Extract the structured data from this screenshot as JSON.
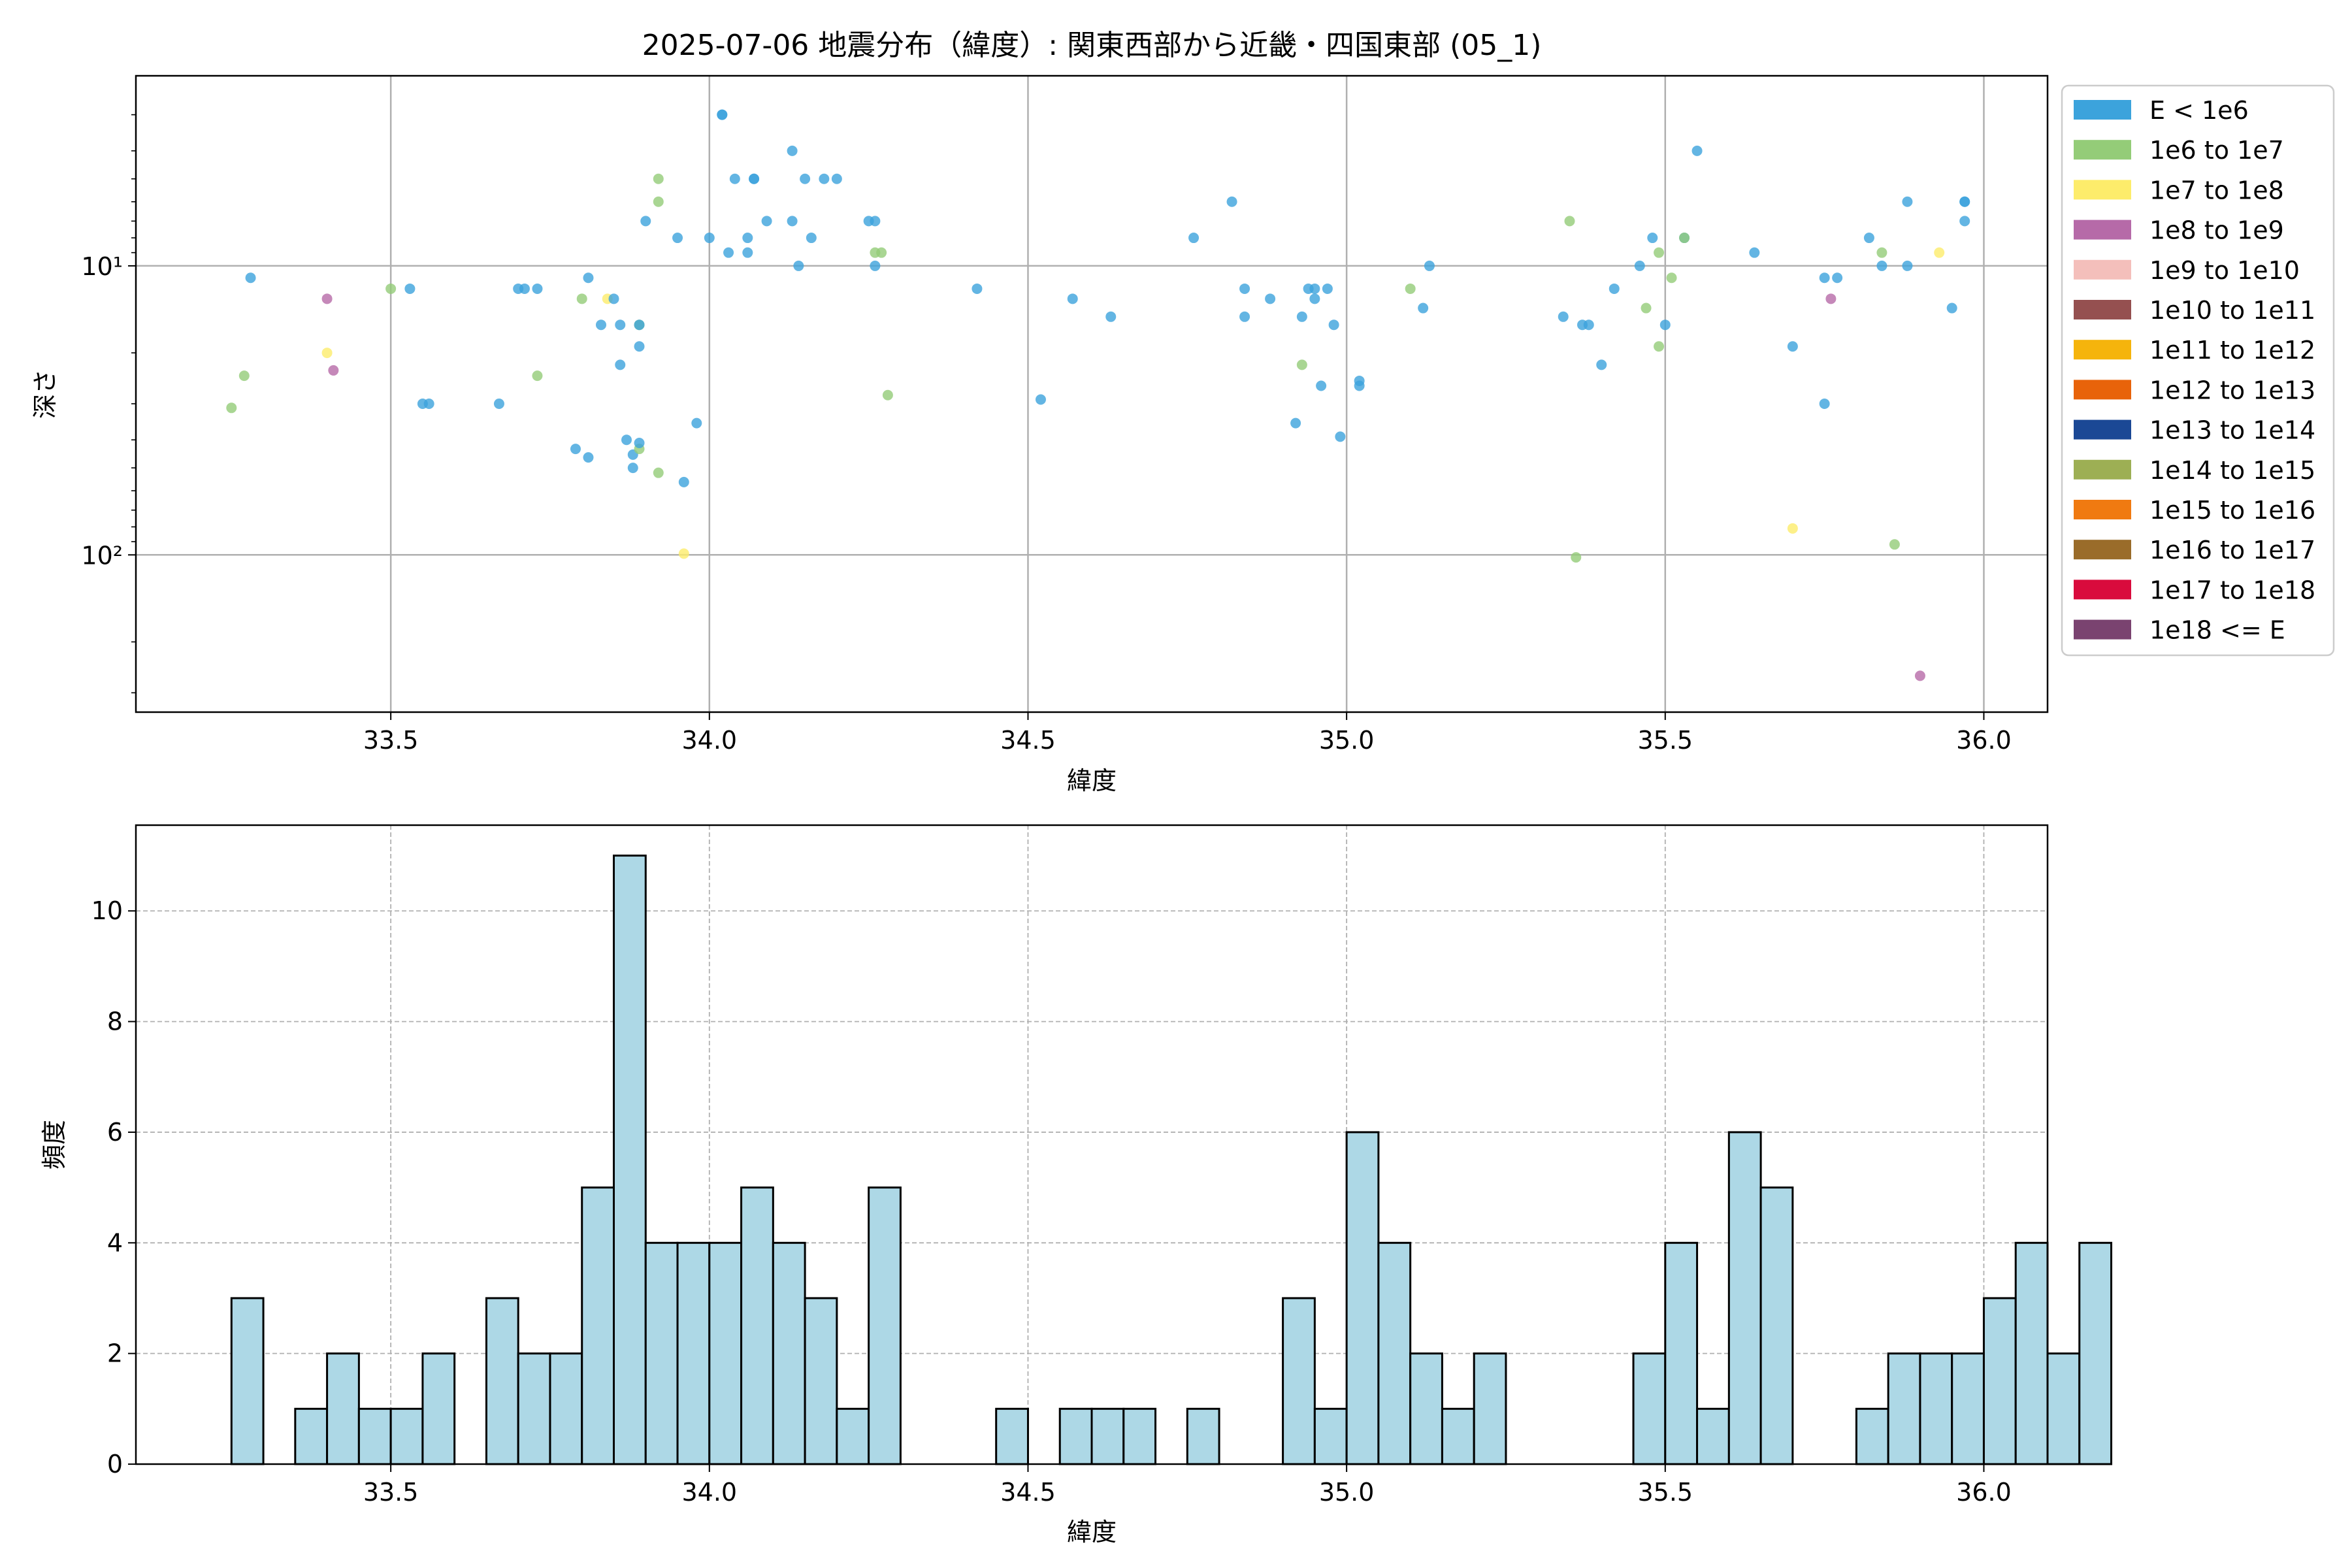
{
  "chart_data": [
    {
      "type": "scatter",
      "title": "2025-07-06 地震分布（緯度）: 関東西部から近畿・四国東部 (05_1)",
      "xlabel": "緯度",
      "ylabel": "深さ",
      "xlim": [
        33.1,
        36.1
      ],
      "ylim": [
        350,
        2.2
      ],
      "y_scale": "log",
      "y_inverted": true,
      "grid": true,
      "x_ticks": [
        33.5,
        34.0,
        34.5,
        35.0,
        35.5,
        36.0
      ],
      "x_tick_labels": [
        "33.5",
        "34.0",
        "34.5",
        "35.0",
        "35.5",
        "36.0"
      ],
      "y_ticks": [
        10,
        100
      ],
      "y_tick_labels": [
        "10¹",
        "10²"
      ],
      "legend_position": "outside-right",
      "legend": [
        {
          "label": "E < 1e6",
          "color": "#3ca3dc"
        },
        {
          "label": "1e6 to 1e7",
          "color": "#94cc78"
        },
        {
          "label": "1e7 to 1e8",
          "color": "#fdec6b"
        },
        {
          "label": "1e8 to 1e9",
          "color": "#b66aa8"
        },
        {
          "label": "1e9 to 1e10",
          "color": "#f4bfbb"
        },
        {
          "label": "1e10 to 1e11",
          "color": "#955050"
        },
        {
          "label": "1e11 to 1e12",
          "color": "#f5b40c"
        },
        {
          "label": "1e12 to 1e13",
          "color": "#e8630a"
        },
        {
          "label": "1e13 to 1e14",
          "color": "#1b4895"
        },
        {
          "label": "1e14 to 1e15",
          "color": "#9daf54"
        },
        {
          "label": "1e15 to 1e16",
          "color": "#f07a11"
        },
        {
          "label": "1e16 to 1e17",
          "color": "#9a6c2a"
        },
        {
          "label": "1e17 to 1e18",
          "color": "#d90b3d"
        },
        {
          "label": "1e18 <= E",
          "color": "#7a4370"
        }
      ],
      "points": [
        {
          "x": 33.25,
          "y": 31,
          "c": 1
        },
        {
          "x": 33.27,
          "y": 24,
          "c": 1
        },
        {
          "x": 33.28,
          "y": 11,
          "c": 0
        },
        {
          "x": 33.4,
          "y": 13,
          "c": 3
        },
        {
          "x": 33.4,
          "y": 20,
          "c": 2
        },
        {
          "x": 33.41,
          "y": 23,
          "c": 3
        },
        {
          "x": 33.5,
          "y": 12,
          "c": 1
        },
        {
          "x": 33.53,
          "y": 12,
          "c": 0
        },
        {
          "x": 33.55,
          "y": 30,
          "c": 0
        },
        {
          "x": 33.56,
          "y": 30,
          "c": 0
        },
        {
          "x": 33.67,
          "y": 30,
          "c": 0
        },
        {
          "x": 33.7,
          "y": 12,
          "c": 0
        },
        {
          "x": 33.71,
          "y": 12,
          "c": 0
        },
        {
          "x": 33.73,
          "y": 12,
          "c": 0
        },
        {
          "x": 33.73,
          "y": 24,
          "c": 1
        },
        {
          "x": 33.79,
          "y": 43,
          "c": 0
        },
        {
          "x": 33.8,
          "y": 13,
          "c": 1
        },
        {
          "x": 33.81,
          "y": 46,
          "c": 0
        },
        {
          "x": 33.81,
          "y": 11,
          "c": 0
        },
        {
          "x": 33.83,
          "y": 16,
          "c": 0
        },
        {
          "x": 33.84,
          "y": 13,
          "c": 2
        },
        {
          "x": 33.85,
          "y": 13,
          "c": 0
        },
        {
          "x": 33.86,
          "y": 16,
          "c": 0
        },
        {
          "x": 33.86,
          "y": 22,
          "c": 0
        },
        {
          "x": 33.87,
          "y": 40,
          "c": 0
        },
        {
          "x": 33.88,
          "y": 50,
          "c": 0
        },
        {
          "x": 33.88,
          "y": 45,
          "c": 0
        },
        {
          "x": 33.89,
          "y": 43,
          "c": 1
        },
        {
          "x": 33.89,
          "y": 41,
          "c": 0
        },
        {
          "x": 33.89,
          "y": 16,
          "c": 1
        },
        {
          "x": 33.89,
          "y": 16,
          "c": 0
        },
        {
          "x": 33.89,
          "y": 19,
          "c": 0
        },
        {
          "x": 33.9,
          "y": 7,
          "c": 0
        },
        {
          "x": 33.92,
          "y": 5,
          "c": 1
        },
        {
          "x": 33.92,
          "y": 6,
          "c": 1
        },
        {
          "x": 33.92,
          "y": 52,
          "c": 1
        },
        {
          "x": 33.95,
          "y": 8,
          "c": 0
        },
        {
          "x": 33.96,
          "y": 56,
          "c": 0
        },
        {
          "x": 33.96,
          "y": 99,
          "c": 2
        },
        {
          "x": 33.98,
          "y": 35,
          "c": 0
        },
        {
          "x": 34.0,
          "y": 8,
          "c": 0
        },
        {
          "x": 34.02,
          "y": 3,
          "c": 0
        },
        {
          "x": 34.02,
          "y": 3,
          "c": 0
        },
        {
          "x": 34.03,
          "y": 9,
          "c": 0
        },
        {
          "x": 34.04,
          "y": 5,
          "c": 0
        },
        {
          "x": 34.06,
          "y": 9,
          "c": 0
        },
        {
          "x": 34.06,
          "y": 8,
          "c": 0
        },
        {
          "x": 34.07,
          "y": 5,
          "c": 0
        },
        {
          "x": 34.07,
          "y": 5,
          "c": 0
        },
        {
          "x": 34.09,
          "y": 7,
          "c": 0
        },
        {
          "x": 34.13,
          "y": 4,
          "c": 0
        },
        {
          "x": 34.13,
          "y": 7,
          "c": 0
        },
        {
          "x": 34.14,
          "y": 10,
          "c": 0
        },
        {
          "x": 34.15,
          "y": 5,
          "c": 0
        },
        {
          "x": 34.16,
          "y": 8,
          "c": 0
        },
        {
          "x": 34.18,
          "y": 5,
          "c": 0
        },
        {
          "x": 34.2,
          "y": 5,
          "c": 0
        },
        {
          "x": 34.25,
          "y": 7,
          "c": 0
        },
        {
          "x": 34.26,
          "y": 7,
          "c": 0
        },
        {
          "x": 34.26,
          "y": 9,
          "c": 1
        },
        {
          "x": 34.26,
          "y": 10,
          "c": 0
        },
        {
          "x": 34.27,
          "y": 9,
          "c": 1
        },
        {
          "x": 34.28,
          "y": 28,
          "c": 1
        },
        {
          "x": 34.42,
          "y": 12,
          "c": 0
        },
        {
          "x": 34.52,
          "y": 29,
          "c": 0
        },
        {
          "x": 34.57,
          "y": 13,
          "c": 0
        },
        {
          "x": 34.63,
          "y": 15,
          "c": 0
        },
        {
          "x": 34.76,
          "y": 8,
          "c": 0
        },
        {
          "x": 34.82,
          "y": 6,
          "c": 0
        },
        {
          "x": 34.84,
          "y": 12,
          "c": 0
        },
        {
          "x": 34.84,
          "y": 15,
          "c": 0
        },
        {
          "x": 34.88,
          "y": 13,
          "c": 0
        },
        {
          "x": 34.92,
          "y": 35,
          "c": 0
        },
        {
          "x": 34.93,
          "y": 15,
          "c": 0
        },
        {
          "x": 34.93,
          "y": 22,
          "c": 1
        },
        {
          "x": 34.94,
          "y": 12,
          "c": 0
        },
        {
          "x": 34.95,
          "y": 12,
          "c": 0
        },
        {
          "x": 34.95,
          "y": 13,
          "c": 0
        },
        {
          "x": 34.96,
          "y": 26,
          "c": 0
        },
        {
          "x": 34.97,
          "y": 12,
          "c": 0
        },
        {
          "x": 34.98,
          "y": 16,
          "c": 0
        },
        {
          "x": 34.99,
          "y": 39,
          "c": 0
        },
        {
          "x": 35.02,
          "y": 25,
          "c": 0
        },
        {
          "x": 35.02,
          "y": 26,
          "c": 0
        },
        {
          "x": 35.1,
          "y": 12,
          "c": 1
        },
        {
          "x": 35.12,
          "y": 14,
          "c": 0
        },
        {
          "x": 35.13,
          "y": 10,
          "c": 0
        },
        {
          "x": 35.34,
          "y": 15,
          "c": 0
        },
        {
          "x": 35.35,
          "y": 7,
          "c": 1
        },
        {
          "x": 35.36,
          "y": 102,
          "c": 1
        },
        {
          "x": 35.37,
          "y": 16,
          "c": 0
        },
        {
          "x": 35.38,
          "y": 16,
          "c": 0
        },
        {
          "x": 35.4,
          "y": 22,
          "c": 0
        },
        {
          "x": 35.42,
          "y": 12,
          "c": 0
        },
        {
          "x": 35.46,
          "y": 10,
          "c": 0
        },
        {
          "x": 35.47,
          "y": 14,
          "c": 1
        },
        {
          "x": 35.48,
          "y": 8,
          "c": 0
        },
        {
          "x": 35.49,
          "y": 9,
          "c": 1
        },
        {
          "x": 35.49,
          "y": 19,
          "c": 1
        },
        {
          "x": 35.5,
          "y": 16,
          "c": 0
        },
        {
          "x": 35.51,
          "y": 11,
          "c": 1
        },
        {
          "x": 35.53,
          "y": 8,
          "c": 0
        },
        {
          "x": 35.53,
          "y": 8,
          "c": 1
        },
        {
          "x": 35.55,
          "y": 4,
          "c": 0
        },
        {
          "x": 35.64,
          "y": 9,
          "c": 0
        },
        {
          "x": 35.7,
          "y": 19,
          "c": 0
        },
        {
          "x": 35.7,
          "y": 81,
          "c": 2
        },
        {
          "x": 35.75,
          "y": 11,
          "c": 0
        },
        {
          "x": 35.75,
          "y": 30,
          "c": 0
        },
        {
          "x": 35.76,
          "y": 13,
          "c": 3
        },
        {
          "x": 35.77,
          "y": 11,
          "c": 0
        },
        {
          "x": 35.82,
          "y": 8,
          "c": 0
        },
        {
          "x": 35.84,
          "y": 9,
          "c": 1
        },
        {
          "x": 35.84,
          "y": 10,
          "c": 0
        },
        {
          "x": 35.86,
          "y": 92,
          "c": 1
        },
        {
          "x": 35.88,
          "y": 6,
          "c": 0
        },
        {
          "x": 35.88,
          "y": 10,
          "c": 0
        },
        {
          "x": 35.9,
          "y": 262,
          "c": 3
        },
        {
          "x": 35.93,
          "y": 9,
          "c": 2
        },
        {
          "x": 35.95,
          "y": 14,
          "c": 0
        },
        {
          "x": 35.97,
          "y": 6,
          "c": 0
        },
        {
          "x": 35.97,
          "y": 7,
          "c": 0
        },
        {
          "x": 35.97,
          "y": 6,
          "c": 0
        }
      ]
    },
    {
      "type": "bar",
      "xlabel": "緯度",
      "ylabel": "頻度",
      "xlim": [
        33.1,
        36.1
      ],
      "ylim": [
        0,
        11.55
      ],
      "grid": true,
      "x_ticks": [
        33.5,
        34.0,
        34.5,
        35.0,
        35.5,
        36.0
      ],
      "x_tick_labels": [
        "33.5",
        "34.0",
        "34.5",
        "35.0",
        "35.5",
        "36.0"
      ],
      "y_ticks": [
        0,
        2,
        4,
        6,
        8,
        10
      ],
      "y_tick_labels": [
        "0",
        "2",
        "4",
        "6",
        "8",
        "10"
      ],
      "bar_color": "#add8e6",
      "bin_start": 33.25,
      "bin_width": 0.05,
      "values": [
        3,
        0,
        1,
        2,
        1,
        1,
        2,
        0,
        3,
        2,
        2,
        5,
        11,
        4,
        4,
        4,
        5,
        4,
        3,
        1,
        5,
        0,
        0,
        0,
        1,
        0,
        1,
        1,
        1,
        0,
        1,
        0,
        0,
        3,
        1,
        6,
        4,
        2,
        1,
        2,
        0,
        0,
        0,
        0,
        2,
        4,
        1,
        6,
        5,
        0,
        0,
        1,
        2,
        2,
        2,
        3,
        4,
        2,
        4
      ]
    }
  ]
}
